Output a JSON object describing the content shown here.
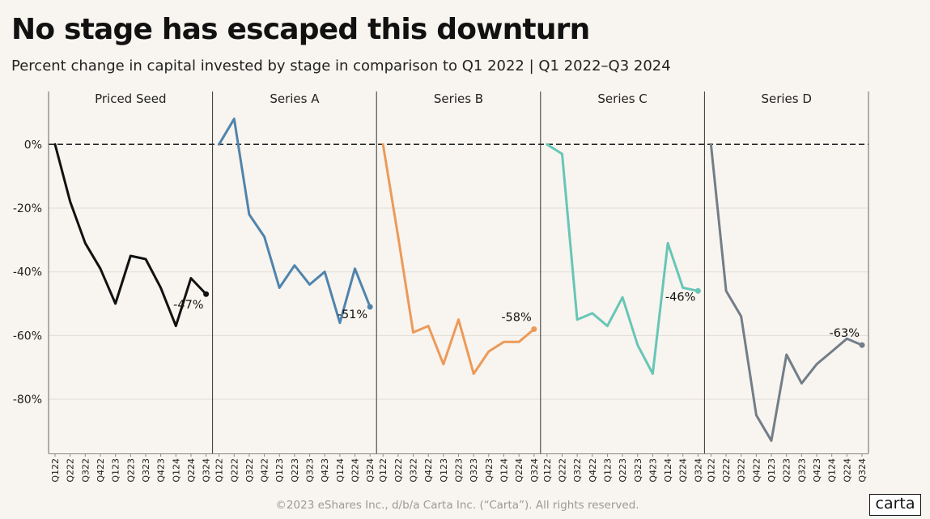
{
  "title": "No stage has escaped this downturn",
  "subtitle": "Percent change in capital invested by stage in comparison to Q1 2022 | Q1 2022–Q3 2024",
  "footer": "©2023 eShares Inc., d/b/a Carta Inc. (“Carta”). All rights reserved.",
  "logo_text": "carta",
  "chart_data": {
    "type": "line",
    "title": "No stage has escaped this downturn",
    "subtitle": "Percent change in capital invested by stage in comparison to Q1 2022 | Q1 2022–Q3 2024",
    "x": [
      "Q1 22",
      "Q2 22",
      "Q3 22",
      "Q4 22",
      "Q1 23",
      "Q2 23",
      "Q3 23",
      "Q4 23",
      "Q1 24",
      "Q2 24",
      "Q3 24"
    ],
    "ylim": [
      -97,
      11
    ],
    "yticks": [
      0,
      -20,
      -40,
      -60,
      -80
    ],
    "ytick_labels": [
      "0%",
      "-20%",
      "-40%",
      "-60%",
      "-80%"
    ],
    "grid": true,
    "reference_line": 0,
    "panels": [
      {
        "name": "Priced Seed",
        "color": "#111111",
        "end_label": "-47%",
        "values": [
          0,
          -18,
          -31,
          -39,
          -50,
          -35,
          -36,
          -45,
          -57,
          -42,
          -47
        ]
      },
      {
        "name": "Series A",
        "color": "#4f84ad",
        "end_label": "-51%",
        "values": [
          0,
          8,
          -22,
          -29,
          -45,
          -38,
          -44,
          -40,
          -56,
          -39,
          -51
        ]
      },
      {
        "name": "Series B",
        "color": "#ec9a59",
        "end_label": "-58%",
        "values": [
          0,
          -29,
          -59,
          -57,
          -69,
          -55,
          -72,
          -65,
          -62,
          -62,
          -58
        ]
      },
      {
        "name": "Series C",
        "color": "#67c6b6",
        "end_label": "-46%",
        "values": [
          0,
          -3,
          -55,
          -53,
          -57,
          -48,
          -63,
          -72,
          -31,
          -45,
          -46
        ]
      },
      {
        "name": "Series D",
        "color": "#727e88",
        "end_label": "-63%",
        "values": [
          0,
          -46,
          -54,
          -85,
          -93,
          -66,
          -75,
          -69,
          -65,
          -61,
          -63
        ]
      }
    ]
  }
}
